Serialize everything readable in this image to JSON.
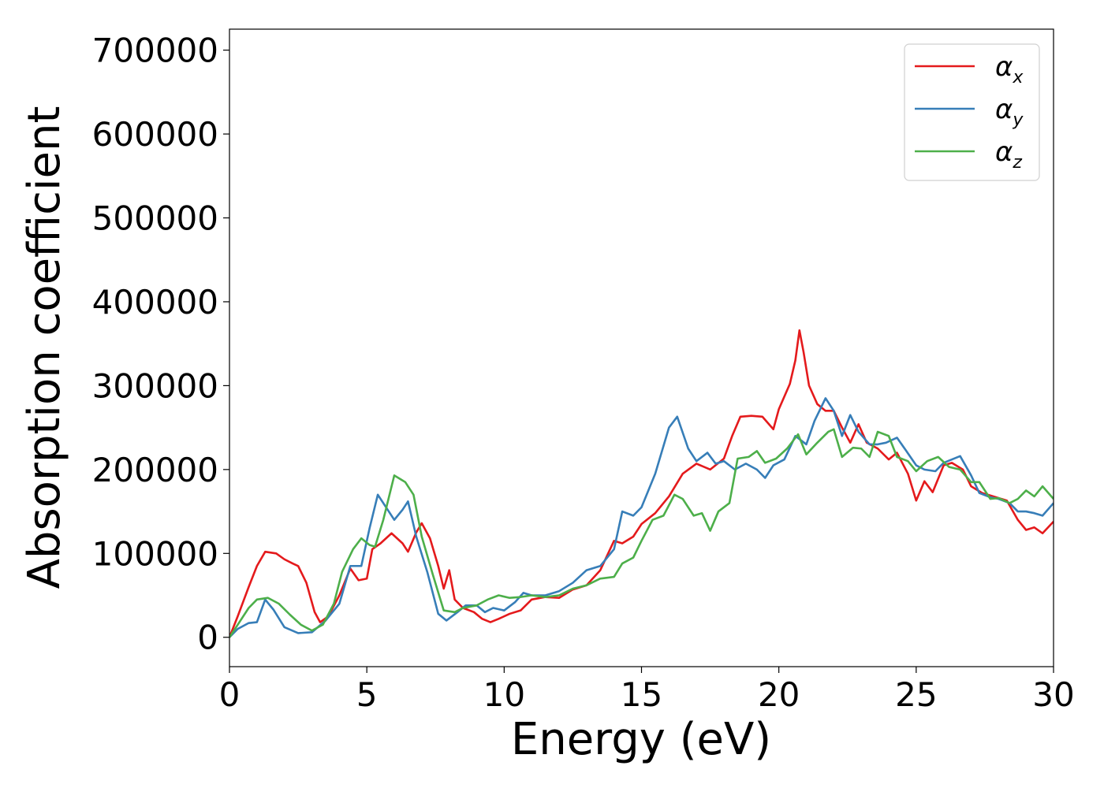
{
  "chart_data": {
    "type": "line",
    "xlabel": "Energy (eV)",
    "ylabel": "Absorption coefficient",
    "xlim": [
      0,
      30
    ],
    "ylim": [
      -35000,
      725000
    ],
    "grid": false,
    "legend_placement": "top-right",
    "x_ticks": [
      0,
      5,
      10,
      15,
      20,
      25,
      30
    ],
    "x_tick_labels": [
      "0",
      "5",
      "10",
      "15",
      "20",
      "25",
      "30"
    ],
    "y_ticks": [
      0,
      100000,
      200000,
      300000,
      400000,
      500000,
      600000,
      700000
    ],
    "y_tick_labels": [
      "0",
      "100000",
      "200000",
      "300000",
      "400000",
      "500000",
      "600000",
      "700000"
    ],
    "series": [
      {
        "name": "α",
        "subscript": "x",
        "color": "#e41a1c",
        "points": [
          [
            0,
            0
          ],
          [
            0.3,
            25000
          ],
          [
            0.7,
            60000
          ],
          [
            1.0,
            85000
          ],
          [
            1.3,
            102000
          ],
          [
            1.7,
            100000
          ],
          [
            2.0,
            93000
          ],
          [
            2.3,
            88000
          ],
          [
            2.5,
            85000
          ],
          [
            2.8,
            65000
          ],
          [
            3.1,
            30000
          ],
          [
            3.3,
            18000
          ],
          [
            3.6,
            25000
          ],
          [
            4.0,
            50000
          ],
          [
            4.4,
            82000
          ],
          [
            4.7,
            68000
          ],
          [
            5.0,
            70000
          ],
          [
            5.2,
            105000
          ],
          [
            5.5,
            112000
          ],
          [
            5.9,
            124000
          ],
          [
            6.3,
            112000
          ],
          [
            6.5,
            102000
          ],
          [
            6.8,
            125000
          ],
          [
            7.0,
            136000
          ],
          [
            7.3,
            118000
          ],
          [
            7.6,
            85000
          ],
          [
            7.8,
            58000
          ],
          [
            8.0,
            80000
          ],
          [
            8.2,
            45000
          ],
          [
            8.5,
            35000
          ],
          [
            8.9,
            30000
          ],
          [
            9.2,
            22000
          ],
          [
            9.5,
            18000
          ],
          [
            9.8,
            22000
          ],
          [
            10.2,
            28000
          ],
          [
            10.6,
            32000
          ],
          [
            11.0,
            45000
          ],
          [
            11.5,
            48000
          ],
          [
            12.0,
            47000
          ],
          [
            12.5,
            57000
          ],
          [
            13.0,
            62000
          ],
          [
            13.5,
            80000
          ],
          [
            14.0,
            115000
          ],
          [
            14.3,
            112000
          ],
          [
            14.7,
            120000
          ],
          [
            15.0,
            135000
          ],
          [
            15.5,
            148000
          ],
          [
            16.0,
            168000
          ],
          [
            16.5,
            195000
          ],
          [
            17.0,
            207000
          ],
          [
            17.5,
            200000
          ],
          [
            18.0,
            213000
          ],
          [
            18.3,
            240000
          ],
          [
            18.6,
            263000
          ],
          [
            19.0,
            264000
          ],
          [
            19.4,
            263000
          ],
          [
            19.8,
            248000
          ],
          [
            20.0,
            272000
          ],
          [
            20.4,
            302000
          ],
          [
            20.6,
            330000
          ],
          [
            20.75,
            366000
          ],
          [
            20.9,
            340000
          ],
          [
            21.1,
            300000
          ],
          [
            21.4,
            278000
          ],
          [
            21.7,
            270000
          ],
          [
            22.0,
            270000
          ],
          [
            22.3,
            250000
          ],
          [
            22.6,
            232000
          ],
          [
            22.9,
            254000
          ],
          [
            23.2,
            232000
          ],
          [
            23.6,
            225000
          ],
          [
            24.0,
            212000
          ],
          [
            24.3,
            220000
          ],
          [
            24.7,
            195000
          ],
          [
            25.0,
            163000
          ],
          [
            25.3,
            186000
          ],
          [
            25.6,
            173000
          ],
          [
            26.0,
            205000
          ],
          [
            26.3,
            208000
          ],
          [
            26.7,
            200000
          ],
          [
            27.0,
            180000
          ],
          [
            27.4,
            172000
          ],
          [
            27.8,
            168000
          ],
          [
            28.3,
            163000
          ],
          [
            28.7,
            140000
          ],
          [
            29.0,
            128000
          ],
          [
            29.3,
            131000
          ],
          [
            29.6,
            124000
          ],
          [
            30.0,
            138000
          ]
        ]
      },
      {
        "name": "α",
        "subscript": "y",
        "color": "#377eb8",
        "points": [
          [
            0,
            0
          ],
          [
            0.3,
            10000
          ],
          [
            0.7,
            17000
          ],
          [
            1.0,
            18000
          ],
          [
            1.3,
            45000
          ],
          [
            1.6,
            33000
          ],
          [
            2.0,
            12000
          ],
          [
            2.5,
            5000
          ],
          [
            3.0,
            6000
          ],
          [
            3.5,
            20000
          ],
          [
            4.0,
            40000
          ],
          [
            4.4,
            85000
          ],
          [
            4.8,
            85000
          ],
          [
            5.1,
            130000
          ],
          [
            5.4,
            170000
          ],
          [
            5.8,
            150000
          ],
          [
            6.0,
            140000
          ],
          [
            6.3,
            152000
          ],
          [
            6.5,
            162000
          ],
          [
            6.8,
            120000
          ],
          [
            7.2,
            78000
          ],
          [
            7.6,
            28000
          ],
          [
            7.9,
            20000
          ],
          [
            8.3,
            30000
          ],
          [
            8.6,
            38000
          ],
          [
            9.0,
            38000
          ],
          [
            9.3,
            30000
          ],
          [
            9.6,
            35000
          ],
          [
            10.0,
            32000
          ],
          [
            10.4,
            42000
          ],
          [
            10.7,
            53000
          ],
          [
            11.0,
            50000
          ],
          [
            11.5,
            50000
          ],
          [
            12.0,
            55000
          ],
          [
            12.5,
            65000
          ],
          [
            13.0,
            80000
          ],
          [
            13.5,
            85000
          ],
          [
            14.0,
            105000
          ],
          [
            14.3,
            150000
          ],
          [
            14.7,
            145000
          ],
          [
            15.0,
            155000
          ],
          [
            15.5,
            195000
          ],
          [
            16.0,
            250000
          ],
          [
            16.3,
            263000
          ],
          [
            16.7,
            225000
          ],
          [
            17.0,
            210000
          ],
          [
            17.4,
            220000
          ],
          [
            17.7,
            207000
          ],
          [
            18.0,
            210000
          ],
          [
            18.4,
            200000
          ],
          [
            18.8,
            207000
          ],
          [
            19.2,
            200000
          ],
          [
            19.5,
            190000
          ],
          [
            19.8,
            205000
          ],
          [
            20.2,
            212000
          ],
          [
            20.6,
            240000
          ],
          [
            21.0,
            230000
          ],
          [
            21.3,
            258000
          ],
          [
            21.7,
            285000
          ],
          [
            22.0,
            270000
          ],
          [
            22.3,
            240000
          ],
          [
            22.6,
            265000
          ],
          [
            22.9,
            245000
          ],
          [
            23.3,
            230000
          ],
          [
            23.6,
            230000
          ],
          [
            23.9,
            232000
          ],
          [
            24.3,
            238000
          ],
          [
            24.6,
            224000
          ],
          [
            25.0,
            205000
          ],
          [
            25.3,
            200000
          ],
          [
            25.7,
            198000
          ],
          [
            26.0,
            208000
          ],
          [
            26.3,
            212000
          ],
          [
            26.6,
            216000
          ],
          [
            27.0,
            193000
          ],
          [
            27.3,
            172000
          ],
          [
            27.7,
            167000
          ],
          [
            28.0,
            165000
          ],
          [
            28.4,
            160000
          ],
          [
            28.7,
            150000
          ],
          [
            29.0,
            150000
          ],
          [
            29.3,
            148000
          ],
          [
            29.6,
            145000
          ],
          [
            30.0,
            160000
          ]
        ]
      },
      {
        "name": "α",
        "subscript": "z",
        "color": "#4daf4a",
        "points": [
          [
            0,
            0
          ],
          [
            0.3,
            15000
          ],
          [
            0.7,
            35000
          ],
          [
            1.0,
            45000
          ],
          [
            1.4,
            47000
          ],
          [
            1.8,
            40000
          ],
          [
            2.2,
            27000
          ],
          [
            2.6,
            15000
          ],
          [
            3.0,
            8000
          ],
          [
            3.4,
            15000
          ],
          [
            3.8,
            40000
          ],
          [
            4.1,
            78000
          ],
          [
            4.5,
            105000
          ],
          [
            4.8,
            118000
          ],
          [
            5.1,
            110000
          ],
          [
            5.3,
            108000
          ],
          [
            5.6,
            140000
          ],
          [
            6.0,
            193000
          ],
          [
            6.4,
            185000
          ],
          [
            6.7,
            170000
          ],
          [
            7.0,
            120000
          ],
          [
            7.4,
            75000
          ],
          [
            7.8,
            32000
          ],
          [
            8.2,
            30000
          ],
          [
            8.5,
            35000
          ],
          [
            9.0,
            38000
          ],
          [
            9.4,
            45000
          ],
          [
            9.8,
            50000
          ],
          [
            10.2,
            47000
          ],
          [
            10.6,
            48000
          ],
          [
            11.0,
            50000
          ],
          [
            11.5,
            48000
          ],
          [
            12.0,
            50000
          ],
          [
            12.5,
            58000
          ],
          [
            13.0,
            62000
          ],
          [
            13.5,
            70000
          ],
          [
            14.0,
            72000
          ],
          [
            14.3,
            88000
          ],
          [
            14.7,
            95000
          ],
          [
            15.0,
            115000
          ],
          [
            15.4,
            140000
          ],
          [
            15.8,
            145000
          ],
          [
            16.2,
            170000
          ],
          [
            16.5,
            165000
          ],
          [
            16.9,
            145000
          ],
          [
            17.2,
            148000
          ],
          [
            17.5,
            127000
          ],
          [
            17.8,
            150000
          ],
          [
            18.2,
            160000
          ],
          [
            18.5,
            213000
          ],
          [
            18.9,
            215000
          ],
          [
            19.2,
            222000
          ],
          [
            19.5,
            208000
          ],
          [
            19.9,
            213000
          ],
          [
            20.3,
            225000
          ],
          [
            20.7,
            242000
          ],
          [
            21.0,
            218000
          ],
          [
            21.4,
            232000
          ],
          [
            21.8,
            245000
          ],
          [
            22.0,
            248000
          ],
          [
            22.3,
            215000
          ],
          [
            22.7,
            226000
          ],
          [
            23.0,
            225000
          ],
          [
            23.3,
            215000
          ],
          [
            23.6,
            245000
          ],
          [
            24.0,
            240000
          ],
          [
            24.3,
            215000
          ],
          [
            24.7,
            210000
          ],
          [
            25.0,
            198000
          ],
          [
            25.4,
            210000
          ],
          [
            25.8,
            215000
          ],
          [
            26.2,
            203000
          ],
          [
            26.6,
            200000
          ],
          [
            27.0,
            185000
          ],
          [
            27.3,
            185000
          ],
          [
            27.7,
            165000
          ],
          [
            28.0,
            166000
          ],
          [
            28.4,
            160000
          ],
          [
            28.7,
            165000
          ],
          [
            29.0,
            175000
          ],
          [
            29.3,
            168000
          ],
          [
            29.6,
            180000
          ],
          [
            30.0,
            165000
          ]
        ]
      }
    ]
  }
}
